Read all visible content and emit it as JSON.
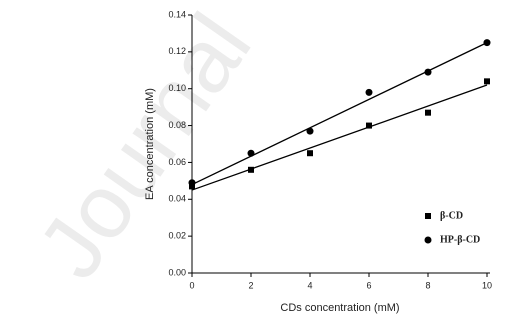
{
  "chart_data": {
    "type": "scatter",
    "watermark": "Journal",
    "x_label": "CDs concentration (mM)",
    "y_label": "EA concentration (mM)",
    "xlim": [
      0,
      10
    ],
    "xticks": [
      0,
      2,
      4,
      6,
      8,
      10
    ],
    "ylim": [
      0,
      0.14
    ],
    "yticks": [
      {
        "value": 0,
        "label": "0.00"
      },
      {
        "value": 0.02,
        "label": "0.02"
      },
      {
        "value": 0.04,
        "label": "0.04"
      },
      {
        "value": 0.06,
        "label": "0.06"
      },
      {
        "value": 0.08,
        "label": "0.08"
      },
      {
        "value": 0.1,
        "label": "0.10"
      },
      {
        "value": 0.12,
        "label": "0.12"
      },
      {
        "value": 0.14,
        "label": "0.14"
      }
    ],
    "series": [
      {
        "name": "β-CD",
        "marker": "square",
        "color": "#000000",
        "x": [
          0,
          2,
          4,
          6,
          8,
          10
        ],
        "values": [
          0.047,
          0.056,
          0.065,
          0.08,
          0.087,
          0.104
        ],
        "fit": {
          "x": [
            0,
            10
          ],
          "values": [
            0.045,
            0.102
          ]
        }
      },
      {
        "name": "HP-β-CD",
        "marker": "circle",
        "color": "#000000",
        "x": [
          0,
          2,
          4,
          6,
          8,
          10
        ],
        "values": [
          0.049,
          0.065,
          0.077,
          0.098,
          0.109,
          0.125
        ],
        "fit": {
          "x": [
            0,
            10
          ],
          "values": [
            0.048,
            0.125
          ]
        }
      }
    ]
  }
}
